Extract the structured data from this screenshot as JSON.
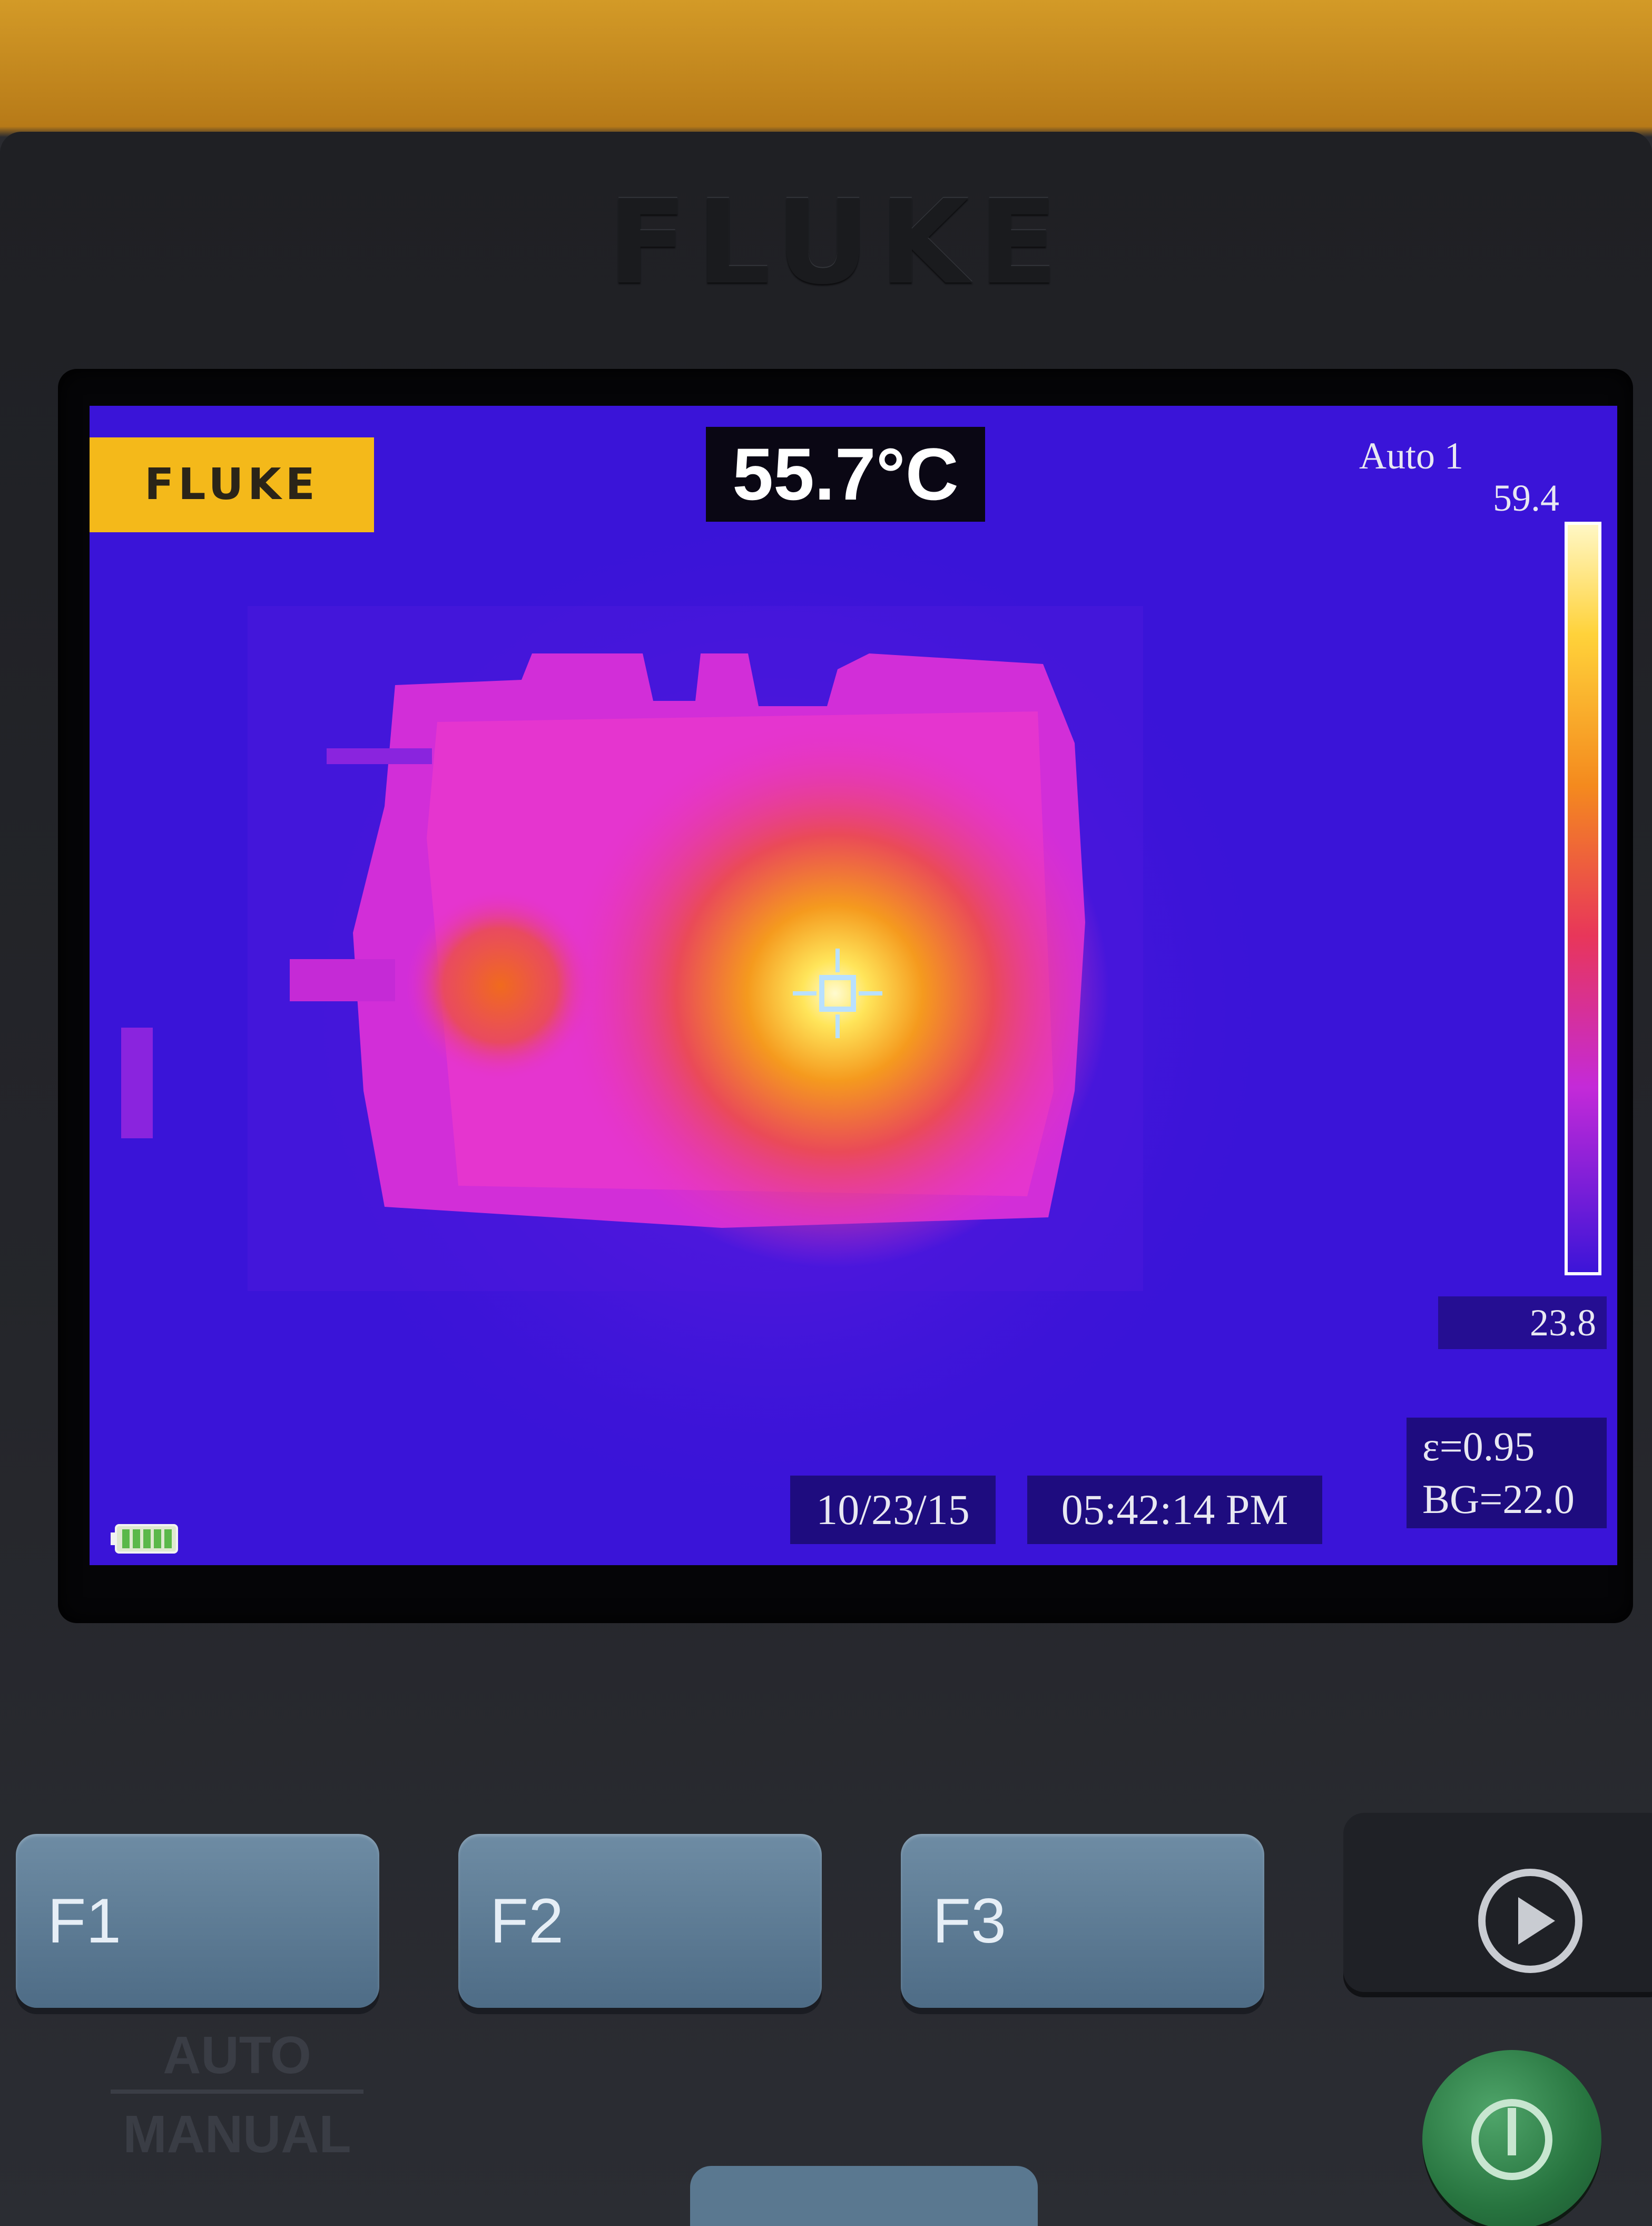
{
  "device": {
    "brand": "FLUKE"
  },
  "screen": {
    "logo_badge": "FLUKE",
    "spot_temperature": "55.7°C",
    "palette_mode": "Auto 1",
    "scale_max": "59.4",
    "scale_min": "23.8",
    "emissivity": "ε=0.95",
    "background_temp": "BG=22.0",
    "date": "10/23/15",
    "time": "05:42:14 PM",
    "battery_icon": "battery-full-icon"
  },
  "colors": {
    "palette_cold": "#3a14d8",
    "palette_mid": "#e832d6",
    "palette_warm": "#f07a1c",
    "palette_hot": "#fff6b0",
    "badge_yellow": "#f4b91a",
    "key_blue": "#5a7890",
    "power_green": "#2f8a4a"
  },
  "keys": {
    "f1": "F1",
    "f2": "F2",
    "f3": "F3",
    "play_icon": "play-icon",
    "power_icon": "power-icon"
  },
  "legend": {
    "auto": "AUTO",
    "manual": "MANUAL"
  }
}
